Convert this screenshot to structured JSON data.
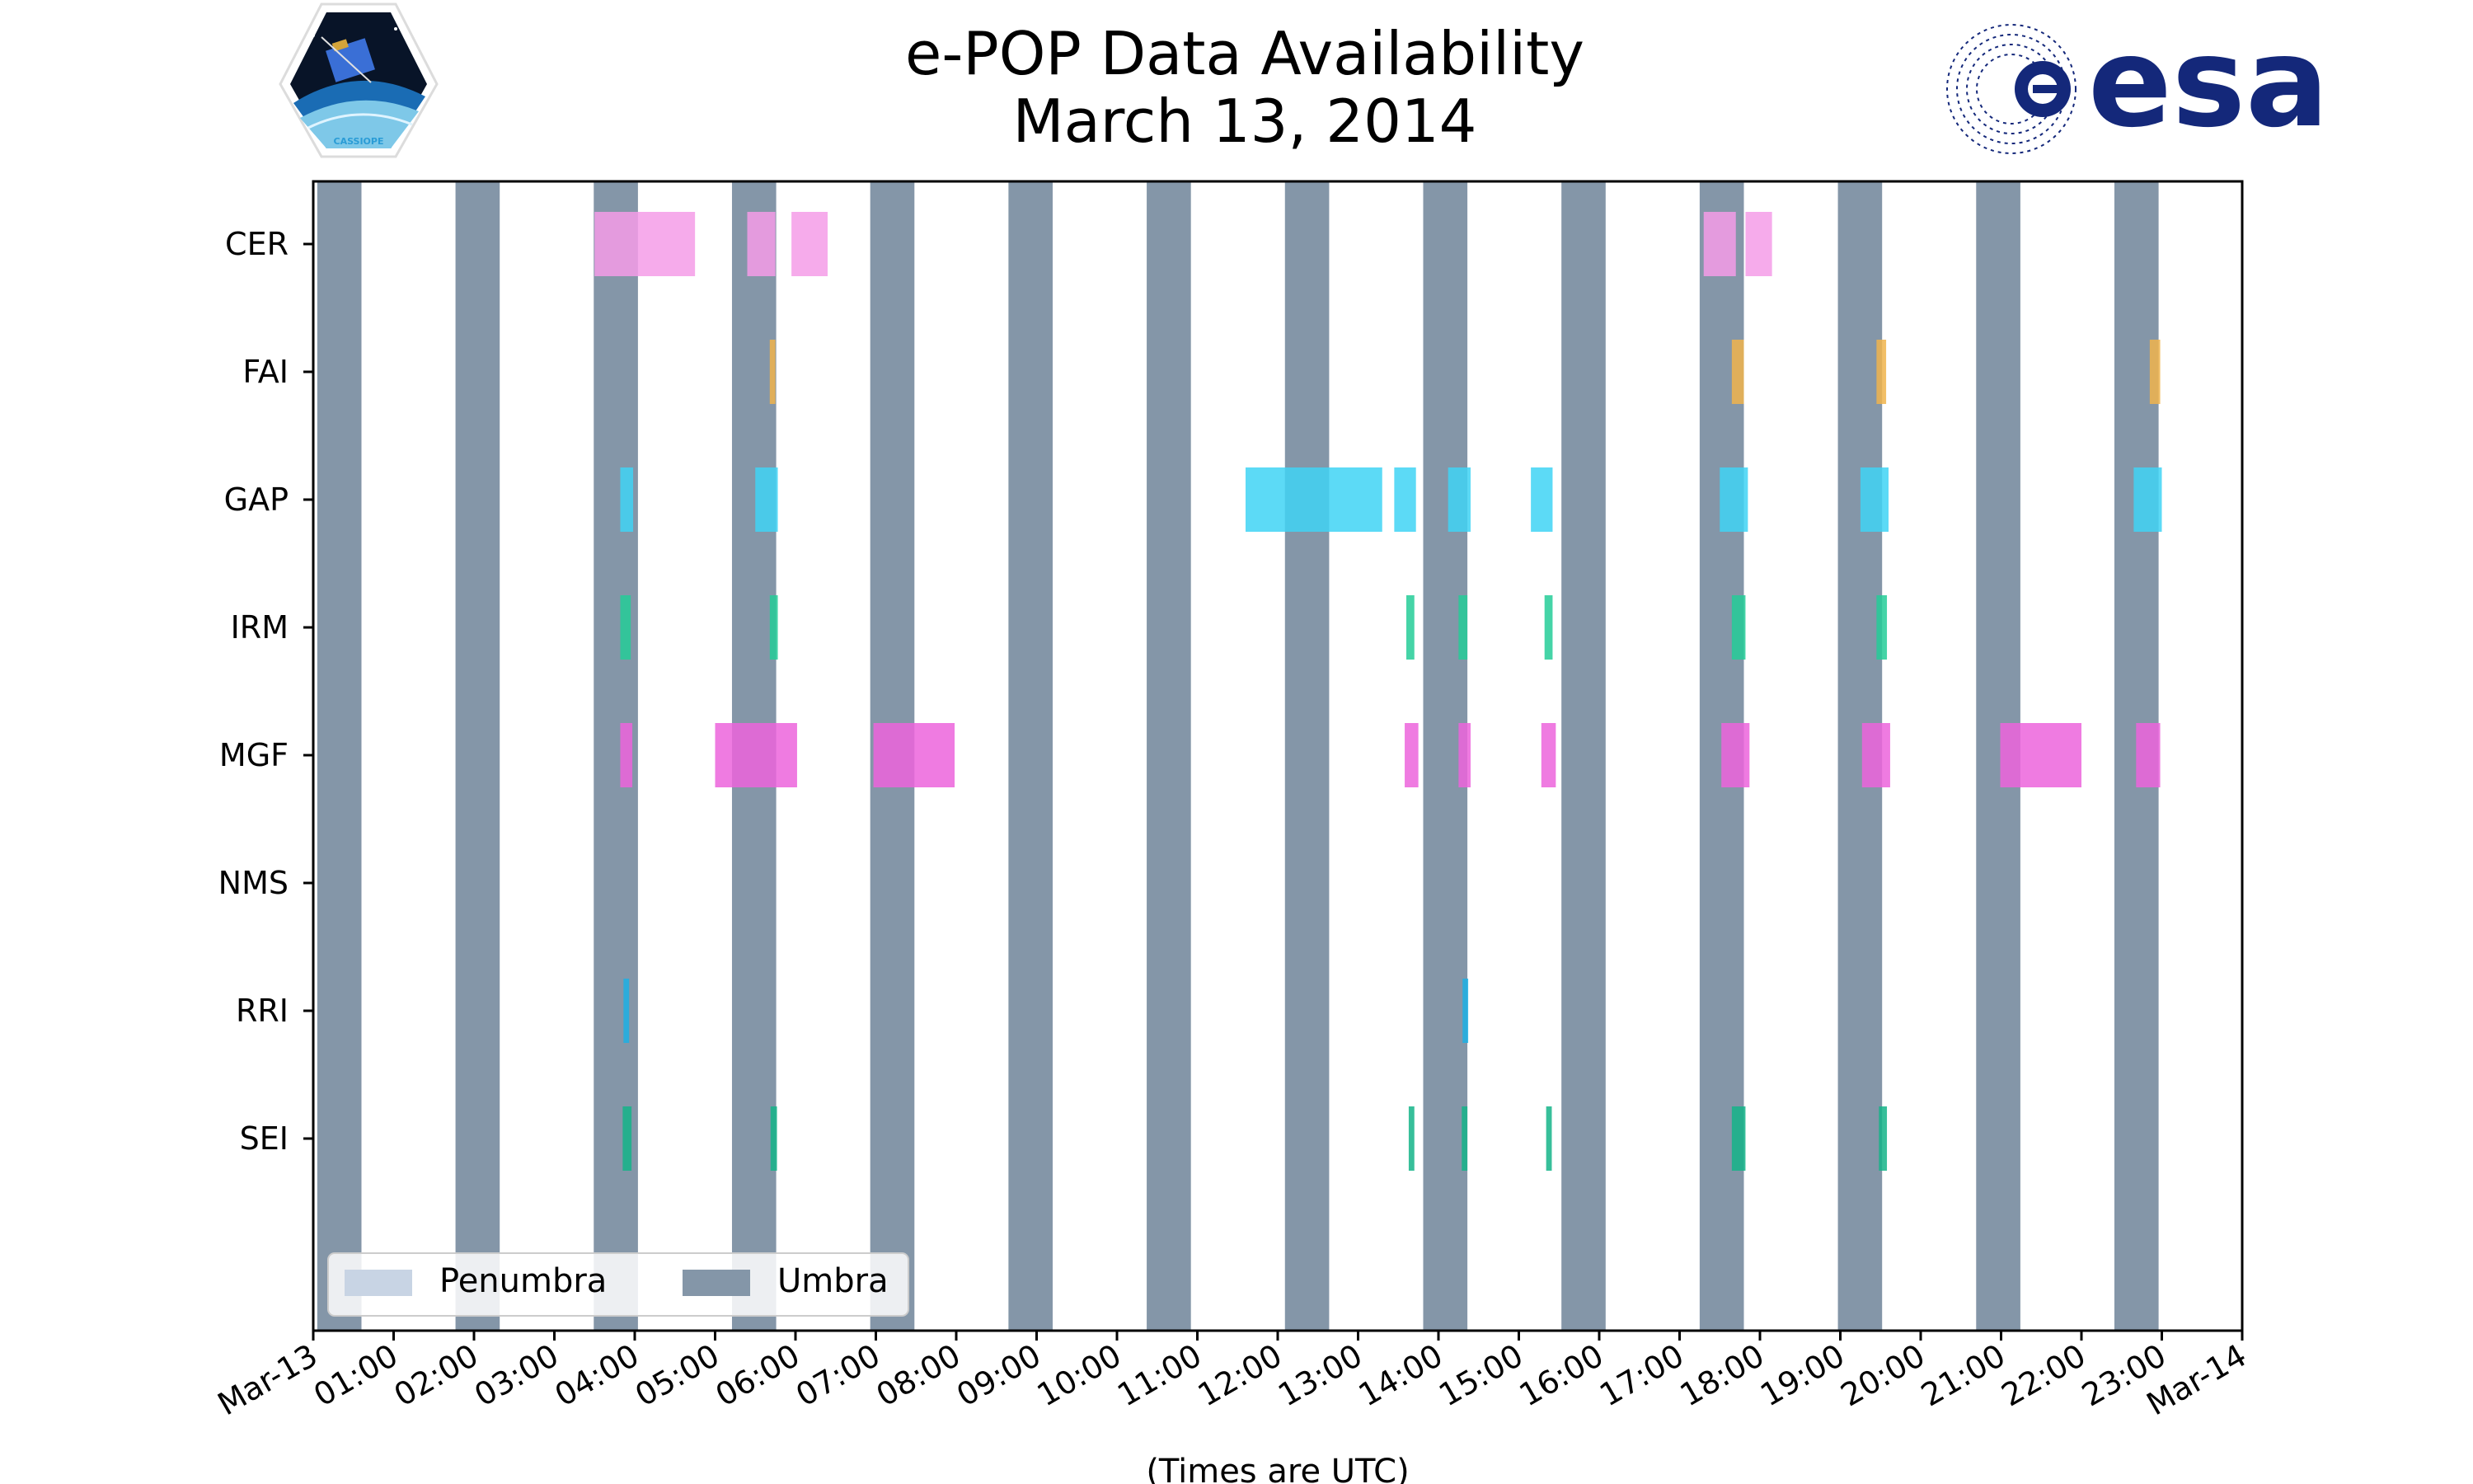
{
  "chart_data": {
    "type": "timeline",
    "title": "e-POP Data Availability",
    "subtitle": "March 13, 2014",
    "xlabel": "(Times are UTC)",
    "x_range_hours": [
      0,
      24
    ],
    "x_ticks": [
      "Mar-13",
      "01:00",
      "02:00",
      "03:00",
      "04:00",
      "05:00",
      "06:00",
      "07:00",
      "08:00",
      "09:00",
      "10:00",
      "11:00",
      "12:00",
      "13:00",
      "14:00",
      "15:00",
      "16:00",
      "17:00",
      "18:00",
      "19:00",
      "20:00",
      "21:00",
      "22:00",
      "23:00",
      "Mar-14"
    ],
    "instruments": [
      "CER",
      "FAI",
      "GAP",
      "IRM",
      "MGF",
      "NMS",
      "RRI",
      "SEI"
    ],
    "colors": {
      "CER": "#f49ce8",
      "FAI": "#f0b44c",
      "GAP": "#40d4f4",
      "IRM": "#24cc98",
      "MGF": "#ec64dc",
      "NMS": "#888888",
      "RRI": "#1cb0e4",
      "SEI": "#14b488",
      "umbra": "#8496a8",
      "penumbra": "#c8d4e4"
    },
    "umbra": [
      [
        0.05,
        0.6
      ],
      [
        1.77,
        2.32
      ],
      [
        3.49,
        4.04
      ],
      [
        5.21,
        5.76
      ],
      [
        6.93,
        7.48
      ],
      [
        8.65,
        9.2
      ],
      [
        10.37,
        10.92
      ],
      [
        12.09,
        12.64
      ],
      [
        13.81,
        14.36
      ],
      [
        15.53,
        16.08
      ],
      [
        17.25,
        17.8
      ],
      [
        18.97,
        19.52
      ],
      [
        20.69,
        21.24
      ],
      [
        22.41,
        22.96
      ]
    ],
    "series": [
      {
        "name": "CER",
        "intervals": [
          [
            3.5,
            4.75
          ],
          [
            5.4,
            5.75
          ],
          [
            5.95,
            6.4
          ],
          [
            17.3,
            17.7
          ],
          [
            17.82,
            18.15
          ]
        ]
      },
      {
        "name": "FAI",
        "intervals": [
          [
            5.68,
            5.75
          ],
          [
            17.65,
            17.8
          ],
          [
            19.45,
            19.57
          ],
          [
            22.85,
            22.98
          ]
        ]
      },
      {
        "name": "GAP",
        "intervals": [
          [
            3.82,
            3.98
          ],
          [
            5.5,
            5.78
          ],
          [
            11.6,
            13.3
          ],
          [
            13.45,
            13.72
          ],
          [
            14.12,
            14.4
          ],
          [
            15.15,
            15.42
          ],
          [
            17.5,
            17.85
          ],
          [
            19.25,
            19.6
          ],
          [
            22.65,
            23.0
          ]
        ]
      },
      {
        "name": "IRM",
        "intervals": [
          [
            3.82,
            3.95
          ],
          [
            5.68,
            5.78
          ],
          [
            13.6,
            13.7
          ],
          [
            14.25,
            14.36
          ],
          [
            15.32,
            15.42
          ],
          [
            17.65,
            17.82
          ],
          [
            19.45,
            19.58
          ]
        ]
      },
      {
        "name": "MGF",
        "intervals": [
          [
            3.82,
            3.97
          ],
          [
            5.0,
            6.02
          ],
          [
            6.97,
            7.98
          ],
          [
            13.58,
            13.75
          ],
          [
            14.25,
            14.4
          ],
          [
            15.28,
            15.46
          ],
          [
            17.52,
            17.87
          ],
          [
            19.27,
            19.62
          ],
          [
            20.99,
            22.0
          ],
          [
            22.68,
            22.98
          ]
        ]
      },
      {
        "name": "NMS",
        "intervals": []
      },
      {
        "name": "RRI",
        "intervals": [
          [
            3.86,
            3.93
          ],
          [
            14.3,
            14.37
          ]
        ]
      },
      {
        "name": "SEI",
        "intervals": [
          [
            3.85,
            3.96
          ],
          [
            5.69,
            5.77
          ],
          [
            13.63,
            13.7
          ],
          [
            14.29,
            14.36
          ],
          [
            15.34,
            15.41
          ],
          [
            17.65,
            17.82
          ],
          [
            19.48,
            19.58
          ]
        ]
      }
    ],
    "legend": {
      "position": "bottom-left",
      "entries": [
        {
          "label": "Penumbra",
          "color_key": "penumbra"
        },
        {
          "label": "Umbra",
          "color_key": "umbra"
        }
      ]
    }
  },
  "logos": {
    "left": {
      "caption": "CASSIOPE"
    },
    "right": {
      "text": "esa"
    }
  }
}
